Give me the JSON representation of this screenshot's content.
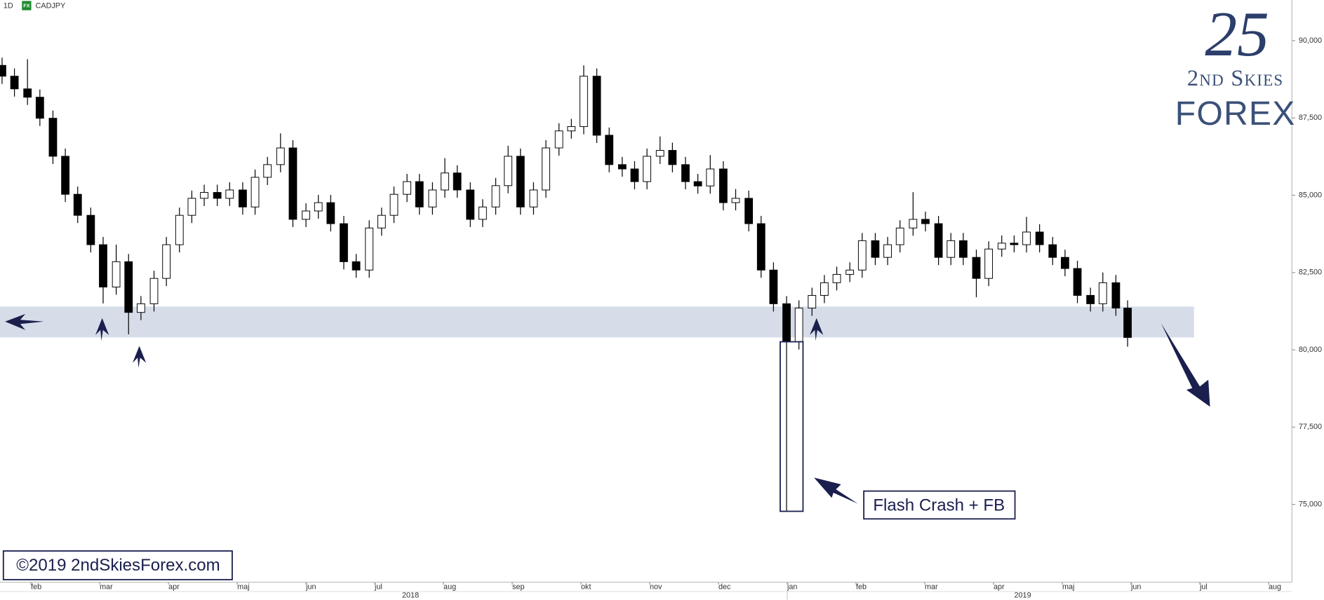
{
  "chart_data": {
    "type": "candlestick",
    "interval": "1D",
    "badge": "FX",
    "title": "CADJPY",
    "x": [
      0.58,
      0.76,
      0.95,
      1.13,
      1.32,
      1.5,
      1.68,
      1.87,
      2.05,
      2.24,
      2.42,
      2.6,
      2.79,
      2.97,
      3.16,
      3.34,
      3.52,
      3.71,
      3.89,
      4.08,
      4.26,
      4.44,
      4.63,
      4.81,
      5.0,
      5.18,
      5.36,
      5.55,
      5.73,
      5.92,
      6.1,
      6.28,
      6.47,
      6.65,
      6.84,
      7.02,
      7.2,
      7.39,
      7.57,
      7.76,
      7.94,
      8.12,
      8.31,
      8.49,
      8.68,
      8.86,
      9.04,
      9.23,
      9.41,
      9.6,
      9.78,
      9.96,
      10.15,
      10.33,
      10.52,
      10.7,
      10.88,
      11.07,
      11.25,
      11.44,
      11.62,
      11.8,
      11.99,
      12.17,
      12.36,
      12.54,
      12.72,
      12.91,
      13.09,
      13.28,
      13.46,
      13.64,
      13.83,
      14.01,
      14.2,
      14.38,
      14.56,
      14.75,
      14.93,
      15.12,
      15.3,
      15.48,
      15.67,
      15.86,
      16.04,
      16.22,
      16.41,
      16.59,
      16.78,
      16.95
    ],
    "open": [
      89.2,
      88.85,
      88.44,
      88.17,
      87.49,
      86.26,
      85.03,
      84.35,
      83.4,
      82.03,
      82.85,
      81.21,
      81.49,
      82.31,
      83.4,
      84.35,
      84.9,
      85.09,
      84.9,
      85.17,
      84.62,
      85.58,
      85.99,
      86.53,
      84.22,
      84.49,
      84.76,
      84.08,
      82.85,
      82.58,
      83.94,
      84.35,
      85.03,
      85.44,
      84.62,
      85.17,
      85.72,
      85.17,
      84.22,
      84.62,
      85.31,
      86.26,
      84.62,
      85.17,
      86.53,
      87.08,
      87.22,
      88.85,
      86.94,
      85.99,
      85.85,
      85.44,
      86.26,
      86.45,
      85.99,
      85.44,
      85.3,
      85.85,
      84.76,
      84.9,
      84.08,
      82.58,
      81.49,
      80.26,
      81.35,
      81.76,
      82.17,
      82.44,
      82.58,
      83.53,
      82.99,
      83.4,
      83.94,
      84.22,
      84.08,
      82.99,
      83.53,
      82.99,
      82.31,
      83.26,
      83.45,
      83.4,
      83.81,
      83.4,
      82.99,
      82.63,
      81.76,
      81.49,
      82.17,
      81.35
    ],
    "high": [
      89.45,
      89.1,
      89.4,
      88.42,
      87.74,
      86.51,
      85.28,
      84.6,
      83.65,
      83.4,
      83.1,
      81.74,
      82.56,
      83.65,
      84.6,
      85.15,
      85.34,
      85.34,
      85.42,
      85.42,
      85.83,
      86.24,
      87.0,
      86.78,
      84.74,
      85.01,
      85.01,
      84.33,
      83.1,
      84.19,
      84.6,
      85.28,
      85.69,
      85.69,
      85.42,
      86.2,
      85.97,
      85.42,
      84.87,
      85.56,
      86.6,
      86.51,
      85.42,
      86.78,
      87.33,
      87.47,
      89.2,
      89.1,
      87.19,
      86.24,
      86.1,
      86.51,
      86.9,
      86.7,
      86.24,
      85.69,
      86.3,
      86.1,
      85.2,
      85.15,
      84.33,
      82.83,
      81.74,
      81.6,
      82.01,
      82.42,
      82.69,
      82.83,
      83.78,
      83.78,
      83.65,
      84.19,
      85.1,
      84.47,
      84.33,
      83.78,
      83.78,
      83.24,
      83.51,
      83.7,
      83.7,
      84.3,
      84.06,
      83.65,
      83.24,
      82.88,
      82.01,
      82.5,
      82.42,
      81.6
    ],
    "low": [
      88.6,
      88.19,
      87.92,
      87.24,
      86.01,
      84.78,
      84.1,
      83.15,
      81.5,
      81.78,
      80.5,
      80.96,
      81.24,
      82.06,
      83.15,
      84.1,
      84.65,
      84.65,
      84.65,
      84.37,
      84.37,
      85.33,
      85.74,
      83.97,
      83.97,
      84.24,
      83.83,
      82.6,
      82.33,
      82.33,
      83.69,
      84.1,
      84.78,
      84.37,
      84.37,
      84.92,
      84.92,
      83.97,
      83.97,
      84.37,
      85.06,
      84.37,
      84.37,
      84.92,
      86.28,
      86.83,
      86.97,
      86.69,
      85.74,
      85.6,
      85.19,
      85.19,
      86.01,
      85.74,
      85.19,
      85.05,
      85.05,
      84.51,
      84.51,
      83.83,
      82.33,
      81.24,
      74.8,
      80.01,
      81.1,
      81.51,
      81.92,
      82.19,
      82.33,
      82.74,
      82.74,
      83.15,
      83.69,
      83.83,
      82.74,
      82.74,
      82.74,
      81.7,
      82.06,
      83.01,
      83.15,
      83.15,
      83.15,
      82.74,
      82.38,
      81.51,
      81.24,
      81.24,
      81.1,
      80.1
    ],
    "close": [
      88.85,
      88.44,
      88.17,
      87.49,
      86.26,
      85.03,
      84.35,
      83.4,
      82.03,
      82.85,
      81.21,
      81.49,
      82.31,
      83.4,
      84.35,
      84.9,
      85.09,
      84.9,
      85.17,
      84.62,
      85.58,
      85.99,
      86.53,
      84.22,
      84.49,
      84.76,
      84.08,
      82.85,
      82.58,
      83.94,
      84.35,
      85.03,
      85.44,
      84.62,
      85.17,
      85.72,
      85.17,
      84.22,
      84.62,
      85.31,
      86.26,
      84.62,
      85.17,
      86.53,
      87.08,
      87.22,
      88.85,
      86.94,
      85.99,
      85.85,
      85.44,
      86.26,
      86.45,
      85.99,
      85.44,
      85.3,
      85.85,
      84.76,
      84.9,
      84.08,
      82.58,
      81.49,
      80.26,
      81.35,
      81.76,
      82.17,
      82.44,
      82.58,
      83.53,
      82.99,
      83.4,
      83.94,
      84.22,
      84.08,
      82.99,
      83.53,
      82.99,
      82.31,
      83.26,
      83.45,
      83.4,
      83.81,
      83.4,
      82.99,
      82.63,
      81.76,
      81.49,
      82.17,
      81.35,
      80.4
    ],
    "up_color": "#ffffff",
    "down_color": "#000000",
    "support_zone": [
      80.4,
      81.4
    ],
    "zone_color": "#d6dde8",
    "xlim": [
      0.55,
      19.34
    ],
    "xticks": [
      {
        "value": 1,
        "label": "feb"
      },
      {
        "value": 2,
        "label": "mar"
      },
      {
        "value": 3,
        "label": "apr"
      },
      {
        "value": 4,
        "label": "maj"
      },
      {
        "value": 5,
        "label": "jun"
      },
      {
        "value": 6,
        "label": "jul"
      },
      {
        "value": 7,
        "label": "aug"
      },
      {
        "value": 8,
        "label": "sep"
      },
      {
        "value": 9,
        "label": "okt"
      },
      {
        "value": 10,
        "label": "nov"
      },
      {
        "value": 11,
        "label": "dec"
      },
      {
        "value": 12,
        "label": "jan"
      },
      {
        "value": 13,
        "label": "feb"
      },
      {
        "value": 14,
        "label": "mar"
      },
      {
        "value": 15,
        "label": "apr"
      },
      {
        "value": 16,
        "label": "maj"
      },
      {
        "value": 17,
        "label": "jun"
      },
      {
        "value": 18,
        "label": "jul"
      },
      {
        "value": 19,
        "label": "aug"
      }
    ],
    "years": [
      "2018",
      "2019"
    ],
    "ylim": [
      72.54,
      91.31
    ],
    "yticks": [
      {
        "value": 75,
        "label": "75,000"
      },
      {
        "value": 77.5,
        "label": "77,500"
      },
      {
        "value": 80,
        "label": "80,000"
      },
      {
        "value": 82.5,
        "label": "82,500"
      },
      {
        "value": 85,
        "label": "85,000"
      },
      {
        "value": 87.5,
        "label": "87,500"
      },
      {
        "value": 90,
        "label": "90,000"
      }
    ],
    "annotations": {
      "flash_crash": "Flash Crash + FB",
      "copyright": "©2019 2ndSkiesForex.com"
    }
  },
  "logo": {
    "mark": "25",
    "line1": "2nd Skies",
    "line2": "FOREX"
  }
}
